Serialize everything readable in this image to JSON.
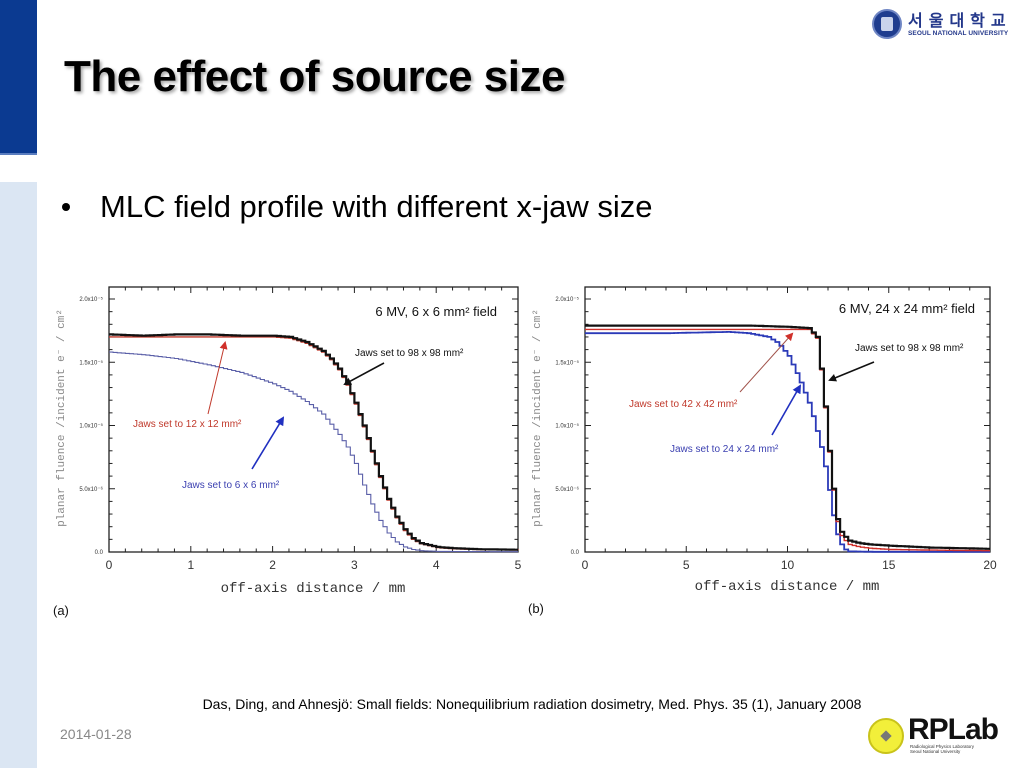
{
  "slide": {
    "title": "The effect of source size",
    "bullet": "MLC field profile with different x-jaw size",
    "citation": "Das, Ding, and Ahnesjö: Small fields: Nonequilibrium radiation dosimetry, Med. Phys. 35 (1), January 2008",
    "date": "2014-01-28",
    "colors": {
      "sidebar_dark": "#0b3a91",
      "sidebar_light": "#dbe6f3"
    }
  },
  "logos": {
    "snu_korean": "서울대학교",
    "snu_english": "SEOUL NATIONAL UNIVERSITY",
    "rplab_name": "RPLab",
    "rplab_sub1": "Radiological Physics Laboratory",
    "rplab_sub2": "Seoul National University",
    "snu_icon": "snu-emblem-icon",
    "rplab_icon": "rplab-emblem-icon"
  },
  "chart_data": [
    {
      "type": "line",
      "panel_label": "(a)",
      "title": "6 MV, 6 x 6 mm² field",
      "xlabel": "off-axis distance  / mm",
      "ylabel": "planar fluence /incident e⁻ / cm²",
      "xlim": [
        0,
        5
      ],
      "ylim": [
        0,
        2.1e-05
      ],
      "xticks": [
        0,
        1,
        2,
        3,
        4,
        5
      ],
      "xtick_labels": [
        "0",
        "1",
        "2",
        "3",
        "4",
        "5"
      ],
      "yticks": [
        0,
        5e-06,
        1e-05,
        1.5e-05,
        2e-05
      ],
      "ytick_labels": [
        "0.0",
        "5.0x10⁻⁶",
        "1.0x10⁻⁵",
        "1.5x10⁻⁵",
        "2.0x10⁻⁵"
      ],
      "grid": false,
      "series": [
        {
          "name": "Jaws set to 98 x 98 mm²",
          "color": "#111111",
          "x": [
            0,
            0.4,
            0.8,
            1.2,
            1.6,
            2.0,
            2.2,
            2.4,
            2.6,
            2.7,
            2.8,
            2.9,
            3.0,
            3.1,
            3.2,
            3.3,
            3.4,
            3.5,
            3.6,
            3.7,
            3.8,
            4.0,
            4.2,
            4.5,
            5.0
          ],
          "y": [
            1.72e-05,
            1.71e-05,
            1.72e-05,
            1.72e-05,
            1.71e-05,
            1.71e-05,
            1.7e-05,
            1.66e-05,
            1.59e-05,
            1.53e-05,
            1.45e-05,
            1.33e-05,
            1.18e-05,
            1e-05,
            8e-06,
            6e-06,
            4.2e-06,
            2.8e-06,
            1.8e-06,
            1.1e-06,
            7e-07,
            4e-07,
            3e-07,
            2.2e-07,
            1.8e-07
          ]
        },
        {
          "name": "Jaws set to 12 x 12 mm²",
          "color": "#c0392b",
          "x": [
            0,
            0.4,
            0.8,
            1.2,
            1.6,
            2.0,
            2.2,
            2.4,
            2.6,
            2.7,
            2.8,
            2.9,
            3.0,
            3.1,
            3.2,
            3.3,
            3.4,
            3.5,
            3.6,
            3.7,
            3.8,
            4.0,
            4.2,
            4.5,
            5.0
          ],
          "y": [
            1.7e-05,
            1.7e-05,
            1.7e-05,
            1.7e-05,
            1.7e-05,
            1.7e-05,
            1.69e-05,
            1.65e-05,
            1.58e-05,
            1.52e-05,
            1.44e-05,
            1.32e-05,
            1.17e-05,
            9.9e-06,
            7.9e-06,
            5.9e-06,
            4.1e-06,
            2.7e-06,
            1.7e-06,
            1e-06,
            6.5e-07,
            3.5e-07,
            2.5e-07,
            2e-07,
            1.6e-07
          ]
        },
        {
          "name": "Jaws set to 6 x 6 mm²",
          "color": "#5a5fa8",
          "x": [
            0,
            0.4,
            0.8,
            1.2,
            1.6,
            2.0,
            2.2,
            2.4,
            2.6,
            2.8,
            2.9,
            3.0,
            3.1,
            3.2,
            3.3,
            3.4,
            3.5,
            3.6,
            3.7,
            3.8,
            4.0,
            4.5,
            5.0
          ],
          "y": [
            1.58e-05,
            1.56e-05,
            1.53e-05,
            1.48e-05,
            1.42e-05,
            1.33e-05,
            1.27e-05,
            1.19e-05,
            1.09e-05,
            9.3e-06,
            8.3e-06,
            7e-06,
            5.3e-06,
            3.8e-06,
            2.5e-06,
            1.5e-06,
            8e-07,
            4e-07,
            2e-07,
            1e-07,
            5e-08,
            3e-08,
            2e-08
          ]
        }
      ],
      "annotations": [
        {
          "text": "Jaws set to 98 x 98 mm²",
          "color": "#111111"
        },
        {
          "text": "Jaws set to 12 x 12 mm²",
          "color": "#c0392b"
        },
        {
          "text": "Jaws set to 6 x 6 mm²",
          "color": "#3a3fb0"
        }
      ]
    },
    {
      "type": "line",
      "panel_label": "(b)",
      "title": "6 MV, 24 x 24 mm² field",
      "xlabel": "off-axis distance  / mm",
      "ylabel": "planar fluence /incident e⁻ / cm²",
      "xlim": [
        0,
        20
      ],
      "ylim": [
        0,
        2.1e-05
      ],
      "xticks": [
        0,
        5,
        10,
        15,
        20
      ],
      "xtick_labels": [
        "0",
        "5",
        "10",
        "15",
        "20"
      ],
      "yticks": [
        0,
        5e-06,
        1e-05,
        1.5e-05,
        2e-05
      ],
      "ytick_labels": [
        "0.0",
        "5.0x10⁻⁶",
        "1.0x10⁻⁵",
        "1.5x10⁻⁵",
        "2.0x10⁻⁵"
      ],
      "grid": false,
      "series": [
        {
          "name": "Jaws set to 98 x 98 mm²",
          "color": "#111111",
          "x": [
            0,
            4,
            8,
            10,
            11,
            11.4,
            11.6,
            11.8,
            12.0,
            12.2,
            12.4,
            12.6,
            12.8,
            13.0,
            13.5,
            14,
            15,
            17,
            20
          ],
          "y": [
            1.79e-05,
            1.79e-05,
            1.79e-05,
            1.78e-05,
            1.77e-05,
            1.7e-05,
            1.45e-05,
            1.15e-05,
            8e-06,
            5e-06,
            2.6e-06,
            1.6e-06,
            1.2e-06,
            9e-07,
            7e-07,
            6e-07,
            5e-07,
            3.5e-07,
            2.5e-07
          ]
        },
        {
          "name": "Jaws set to 42 x 42 mm²",
          "color": "#d0302a",
          "x": [
            0,
            4,
            8,
            10,
            11,
            11.4,
            11.6,
            11.8,
            12.0,
            12.2,
            12.4,
            12.6,
            12.8,
            13.0,
            13.5,
            14,
            15,
            17,
            20
          ],
          "y": [
            1.76e-05,
            1.76e-05,
            1.76e-05,
            1.76e-05,
            1.76e-05,
            1.69e-05,
            1.44e-05,
            1.14e-05,
            7.9e-06,
            4.9e-06,
            2.4e-06,
            1.3e-06,
            9e-07,
            6e-07,
            4e-07,
            3e-07,
            2e-07,
            1.5e-07,
            1e-07
          ]
        },
        {
          "name": "Jaws set to 24 x 24 mm²",
          "color": "#2b3ab8",
          "x": [
            0,
            4,
            7,
            8,
            9,
            9.5,
            10,
            10.5,
            11,
            11.3,
            11.6,
            11.9,
            12.1,
            12.3,
            12.5,
            12.8,
            13.0,
            14,
            20
          ],
          "y": [
            1.73e-05,
            1.73e-05,
            1.74e-05,
            1.73e-05,
            1.7e-05,
            1.65e-05,
            1.55e-05,
            1.38e-05,
            1.18e-05,
            1.02e-05,
            8.3e-06,
            6e-06,
            3.8e-06,
            2e-06,
            8e-07,
            2e-07,
            5e-08,
            2e-08,
            1e-08
          ]
        }
      ],
      "annotations": [
        {
          "text": "Jaws set to 98 x 98 mm²",
          "color": "#111111"
        },
        {
          "text": "Jaws set to 42 x 42 mm²",
          "color": "#c0392b"
        },
        {
          "text": "Jaws set to 24 x 24 mm²",
          "color": "#3a3fb0"
        }
      ]
    }
  ]
}
